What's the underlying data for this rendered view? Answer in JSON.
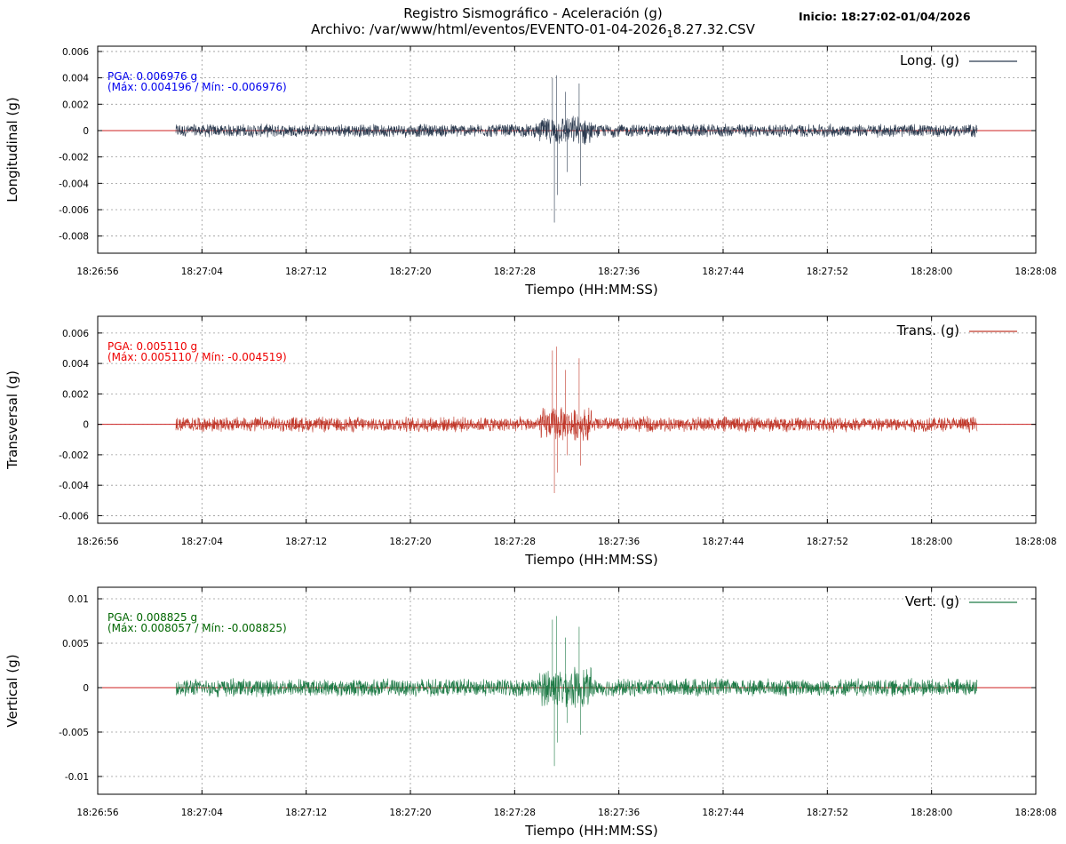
{
  "header": {
    "title_line1": "Registro Sismográfico - Aceleración (g)",
    "title_line2_a": "Archivo: /var/www/html/eventos/EVENTO-01-04-2026",
    "title_line2_sub": "1",
    "title_line2_b": "8.27.32.CSV",
    "start": "Inicio: 18:27:02-01/04/2026"
  },
  "chart_data": [
    {
      "type": "line",
      "ylabel": "Longitudinal (g)",
      "xlabel": "Tiempo (HH:MM:SS)",
      "legend": "Long. (g)",
      "legend_position": "top-right",
      "color": "#2b3a4f",
      "baseline_color": "#cc2222",
      "ann_color": "#0000ee",
      "pga_text": "PGA: 0.006976 g",
      "range_text": "(Máx: 0.004196 / Mín: -0.006976)",
      "pga": 0.006976,
      "max": 0.004196,
      "min": -0.006976,
      "noise": 0.00055,
      "ylim": [
        -0.0093,
        0.0064
      ],
      "yticks": [
        0.006,
        0.004,
        0.002,
        0,
        -0.002,
        -0.004,
        -0.006,
        -0.008
      ],
      "ytick_labels": [
        "0.006",
        "0.004",
        "0.002",
        "0",
        "-0.002",
        "-0.004",
        "-0.006",
        "-0.008"
      ],
      "grid": true
    },
    {
      "type": "line",
      "ylabel": "Transversal (g)",
      "xlabel": "Tiempo (HH:MM:SS)",
      "legend": "Trans. (g)",
      "legend_position": "top-right",
      "color": "#c0392b",
      "baseline_color": "#cc2222",
      "ann_color": "#ee0000",
      "pga_text": "PGA: 0.005110 g",
      "range_text": "(Máx: 0.005110 / Mín: -0.004519)",
      "pga": 0.00511,
      "max": 0.00511,
      "min": -0.004519,
      "noise": 0.00055,
      "ylim": [
        -0.0065,
        0.0071
      ],
      "yticks": [
        0.006,
        0.004,
        0.002,
        0,
        -0.002,
        -0.004,
        -0.006
      ],
      "ytick_labels": [
        "0.006",
        "0.004",
        "0.002",
        "0",
        "-0.002",
        "-0.004",
        "-0.006"
      ],
      "grid": true
    },
    {
      "type": "line",
      "ylabel": "Vertical (g)",
      "xlabel": "Tiempo (HH:MM:SS)",
      "legend": "Vert. (g)",
      "legend_position": "top-right",
      "color": "#1e7a46",
      "baseline_color": "#cc2222",
      "ann_color": "#006600",
      "pga_text": "PGA: 0.008825 g",
      "range_text": "(Máx: 0.008057 / Mín: -0.008825)",
      "pga": 0.008825,
      "max": 0.008057,
      "min": -0.008825,
      "noise": 0.0011,
      "ylim": [
        -0.012,
        0.0113
      ],
      "yticks": [
        0.01,
        0.005,
        0,
        -0.005,
        -0.01
      ],
      "ytick_labels": [
        "0.01",
        "0.005",
        "0",
        "-0.005",
        "-0.01"
      ],
      "grid": true
    }
  ],
  "x_axis": {
    "range_seconds_from_start": [
      -6,
      66
    ],
    "ticks": [
      "18:26:56",
      "18:27:04",
      "18:27:12",
      "18:27:20",
      "18:27:28",
      "18:27:36",
      "18:27:44",
      "18:27:52",
      "18:28:00",
      "18:28:08"
    ],
    "signal_window_seconds": [
      0,
      61.5
    ],
    "event_seconds": [
      28.7,
      31
    ]
  }
}
